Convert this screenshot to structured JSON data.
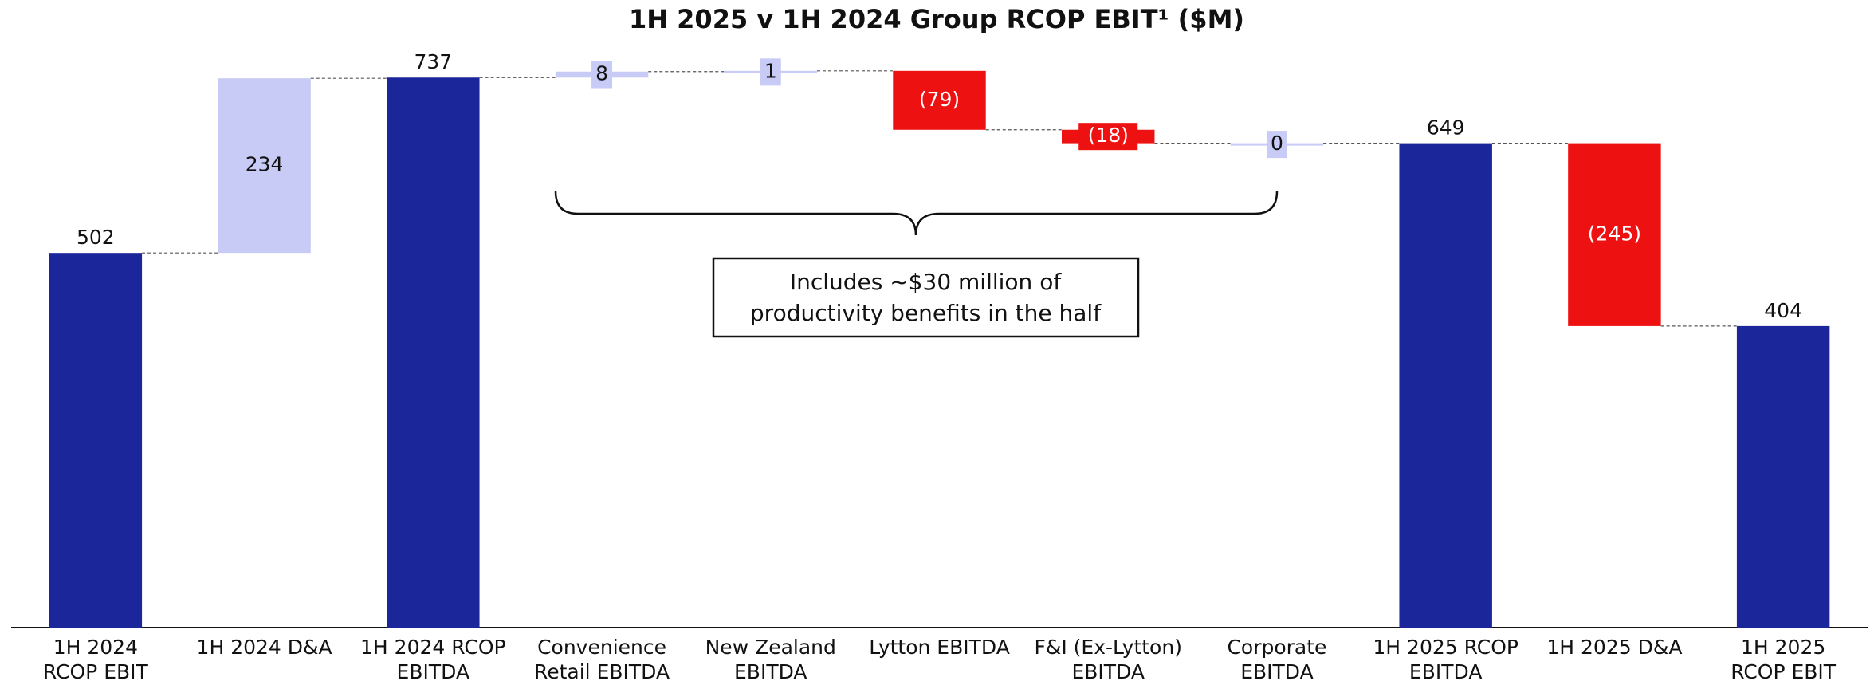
{
  "chart_data": {
    "type": "waterfall",
    "title": "1H 2025 v 1H 2024 Group RCOP EBIT¹ ($M)",
    "categories": [
      [
        "1H 2024",
        "RCOP EBIT"
      ],
      [
        "1H 2024 D&A"
      ],
      [
        "1H 2024 RCOP",
        "EBITDA"
      ],
      [
        "Convenience",
        "Retail EBITDA"
      ],
      [
        "New Zealand",
        "EBITDA"
      ],
      [
        "Lytton EBITDA"
      ],
      [
        "F&I (Ex-Lytton)",
        "EBITDA"
      ],
      [
        "Corporate",
        "EBITDA"
      ],
      [
        "1H 2025 RCOP",
        "EBITDA"
      ],
      [
        "1H 2025 D&A"
      ],
      [
        "1H 2025",
        "RCOP EBIT"
      ]
    ],
    "values": [
      502,
      234,
      737,
      8,
      1,
      -79,
      -18,
      0,
      649,
      -245,
      404
    ],
    "value_labels": [
      "502",
      "234",
      "737",
      "8",
      "1",
      "(79)",
      "(18)",
      "0",
      "649",
      "(245)",
      "404"
    ],
    "measures": [
      "total",
      "relative",
      "total",
      "relative",
      "relative",
      "relative",
      "relative",
      "relative",
      "total",
      "relative",
      "total"
    ],
    "colors": {
      "total": "#1a2699",
      "increase": "#c8cbf5",
      "decrease": "#ee1111"
    },
    "ylim": [
      0,
      780
    ],
    "annotation": [
      "Includes ~$30 million of",
      "productivity benefits in the half"
    ]
  }
}
